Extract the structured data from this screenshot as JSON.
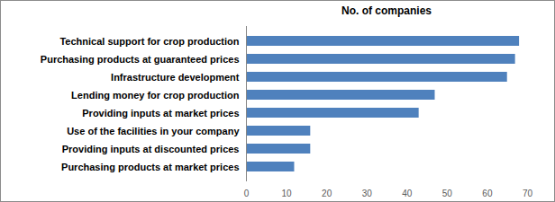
{
  "chart_data": {
    "type": "bar",
    "orientation": "horizontal",
    "title": "No. of companies",
    "categories": [
      "Technical support for crop production",
      "Purchasing products at guaranteed prices",
      "Infrastructure development",
      "Lending money for crop production",
      "Providing inputs at market prices",
      "Use of the facilities in your company",
      "Providing inputs at discounted prices",
      "Purchasing products at market prices"
    ],
    "values": [
      68,
      67,
      65,
      47,
      43,
      16,
      16,
      12
    ],
    "color": "#4f81bd",
    "xlim": [
      0,
      70
    ],
    "xticks": [
      0,
      10,
      20,
      30,
      40,
      50,
      60,
      70
    ],
    "grid": false
  }
}
